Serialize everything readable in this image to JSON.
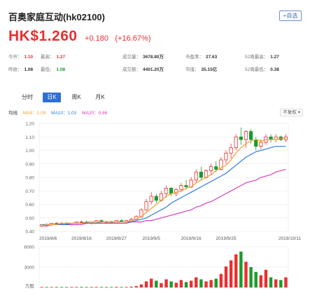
{
  "header": {
    "name": "百奥家庭互动(hk02100)",
    "watch_label": "+自选"
  },
  "quote": {
    "price": "HK$1.260",
    "change": "+0.180",
    "change_pct": "(+16.67%)"
  },
  "stats": [
    {
      "label": "今开：",
      "value": "1.10",
      "color": "red"
    },
    {
      "label": "最高：",
      "value": "1.27",
      "color": "red"
    },
    {
      "label": "成交量：",
      "value": "3678.80万",
      "color": "dark"
    },
    {
      "label": "市盈率：",
      "value": "27.63",
      "color": "dark"
    },
    {
      "label": "52周最高：",
      "value": "1.27",
      "color": "dark"
    },
    {
      "label": "昨收：",
      "value": "1.08",
      "color": "dark"
    },
    {
      "label": "最低：",
      "value": "1.08",
      "color": "green"
    },
    {
      "label": "成交额：",
      "value": "4401.20万",
      "color": "dark"
    },
    {
      "label": "市值：",
      "value": "35.15亿",
      "color": "dark"
    },
    {
      "label": "52周最低：",
      "value": "0.38",
      "color": "dark"
    }
  ],
  "tabs": [
    {
      "label": "分时",
      "active": false
    },
    {
      "label": "日K",
      "active": true
    },
    {
      "label": "周K",
      "active": false
    },
    {
      "label": "月K",
      "active": false
    }
  ],
  "legend": {
    "title": "均线",
    "ma5": "MA5：1.09",
    "ma10": "MA10：1.03",
    "ma20": "MA20：0.86",
    "adjust": "不复权 ▾"
  },
  "colors": {
    "up": "#e93030",
    "down": "#1a9b2e",
    "ma5": "#f0a030",
    "ma10": "#2f7de0",
    "ma20": "#d63fbd",
    "grid": "#e6e6e6"
  },
  "chart_data": [
    {
      "type": "candlestick",
      "ylim": [
        0.4,
        1.2
      ],
      "yticks": [
        0.4,
        0.5,
        0.6,
        0.7,
        0.8,
        0.9,
        1.0,
        1.1,
        1.2
      ],
      "ytick_labels": [
        "0.40",
        "0.50",
        "0.60",
        "0.70",
        "0.80",
        "0.90",
        "1.00",
        "1.10",
        "1.20"
      ],
      "xtick_labels": [
        "2019/8/6",
        "2019/8/16",
        "2019/8/27",
        "2019/9/5",
        "2019/9/16",
        "2019/9/25",
        "2019/10/11"
      ],
      "xtick_index": [
        0,
        8,
        15,
        22,
        30,
        37,
        49
      ],
      "ohlc": [
        [
          0.44,
          0.45,
          0.43,
          0.45
        ],
        [
          0.45,
          0.46,
          0.44,
          0.45
        ],
        [
          0.45,
          0.46,
          0.44,
          0.46
        ],
        [
          0.46,
          0.47,
          0.45,
          0.46
        ],
        [
          0.46,
          0.47,
          0.45,
          0.46
        ],
        [
          0.46,
          0.47,
          0.45,
          0.45
        ],
        [
          0.45,
          0.46,
          0.44,
          0.46
        ],
        [
          0.46,
          0.47,
          0.45,
          0.47
        ],
        [
          0.47,
          0.48,
          0.46,
          0.47
        ],
        [
          0.47,
          0.48,
          0.46,
          0.46
        ],
        [
          0.46,
          0.47,
          0.45,
          0.47
        ],
        [
          0.47,
          0.48,
          0.46,
          0.48
        ],
        [
          0.48,
          0.49,
          0.47,
          0.47
        ],
        [
          0.47,
          0.48,
          0.46,
          0.47
        ],
        [
          0.47,
          0.48,
          0.46,
          0.46
        ],
        [
          0.46,
          0.48,
          0.46,
          0.48
        ],
        [
          0.48,
          0.49,
          0.47,
          0.47
        ],
        [
          0.47,
          0.48,
          0.46,
          0.48
        ],
        [
          0.48,
          0.5,
          0.47,
          0.49
        ],
        [
          0.49,
          0.52,
          0.48,
          0.51
        ],
        [
          0.51,
          0.57,
          0.5,
          0.56
        ],
        [
          0.56,
          0.64,
          0.55,
          0.62
        ],
        [
          0.62,
          0.69,
          0.6,
          0.66
        ],
        [
          0.66,
          0.68,
          0.61,
          0.63
        ],
        [
          0.63,
          0.7,
          0.62,
          0.68
        ],
        [
          0.68,
          0.74,
          0.65,
          0.72
        ],
        [
          0.72,
          0.73,
          0.66,
          0.68
        ],
        [
          0.68,
          0.72,
          0.66,
          0.71
        ],
        [
          0.71,
          0.76,
          0.69,
          0.74
        ],
        [
          0.74,
          0.78,
          0.71,
          0.73
        ],
        [
          0.73,
          0.8,
          0.72,
          0.78
        ],
        [
          0.78,
          0.86,
          0.76,
          0.84
        ],
        [
          0.84,
          0.88,
          0.78,
          0.8
        ],
        [
          0.8,
          0.86,
          0.79,
          0.85
        ],
        [
          0.85,
          0.9,
          0.82,
          0.88
        ],
        [
          0.88,
          0.92,
          0.84,
          0.86
        ],
        [
          0.86,
          0.95,
          0.85,
          0.93
        ],
        [
          0.93,
          1.0,
          0.9,
          0.98
        ],
        [
          0.98,
          1.05,
          0.94,
          1.02
        ],
        [
          1.02,
          1.12,
          1.0,
          1.1
        ],
        [
          1.1,
          1.17,
          1.04,
          1.08
        ],
        [
          1.08,
          1.15,
          1.02,
          1.14
        ],
        [
          1.14,
          1.16,
          1.05,
          1.08
        ],
        [
          1.08,
          1.1,
          1.0,
          1.03
        ],
        [
          1.03,
          1.08,
          1.01,
          1.06
        ],
        [
          1.06,
          1.12,
          1.04,
          1.1
        ],
        [
          1.1,
          1.12,
          1.06,
          1.08
        ],
        [
          1.08,
          1.12,
          1.06,
          1.1
        ],
        [
          1.1,
          1.11,
          1.07,
          1.08
        ],
        [
          1.08,
          1.12,
          1.06,
          1.1
        ]
      ],
      "ma5": [
        0.44,
        0.45,
        0.45,
        0.45,
        0.46,
        0.46,
        0.46,
        0.46,
        0.46,
        0.47,
        0.47,
        0.47,
        0.47,
        0.47,
        0.47,
        0.47,
        0.47,
        0.47,
        0.48,
        0.49,
        0.51,
        0.54,
        0.57,
        0.6,
        0.63,
        0.66,
        0.68,
        0.69,
        0.7,
        0.72,
        0.73,
        0.76,
        0.78,
        0.8,
        0.82,
        0.85,
        0.87,
        0.89,
        0.93,
        0.98,
        1.02,
        1.05,
        1.07,
        1.08,
        1.07,
        1.08,
        1.08,
        1.08,
        1.09,
        1.09
      ],
      "ma10": [
        0.45,
        0.45,
        0.45,
        0.45,
        0.45,
        0.45,
        0.46,
        0.46,
        0.46,
        0.46,
        0.46,
        0.46,
        0.47,
        0.47,
        0.47,
        0.47,
        0.47,
        0.47,
        0.47,
        0.48,
        0.49,
        0.5,
        0.52,
        0.54,
        0.56,
        0.58,
        0.61,
        0.63,
        0.65,
        0.67,
        0.69,
        0.71,
        0.73,
        0.75,
        0.77,
        0.79,
        0.81,
        0.83,
        0.86,
        0.89,
        0.92,
        0.95,
        0.97,
        0.99,
        1.0,
        1.01,
        1.02,
        1.03,
        1.03,
        1.03
      ],
      "ma20": [
        0.44,
        0.44,
        0.45,
        0.45,
        0.45,
        0.45,
        0.45,
        0.45,
        0.45,
        0.46,
        0.46,
        0.46,
        0.46,
        0.46,
        0.46,
        0.46,
        0.46,
        0.46,
        0.47,
        0.47,
        0.47,
        0.48,
        0.48,
        0.49,
        0.5,
        0.51,
        0.52,
        0.53,
        0.54,
        0.55,
        0.56,
        0.58,
        0.59,
        0.61,
        0.62,
        0.64,
        0.66,
        0.68,
        0.7,
        0.72,
        0.74,
        0.76,
        0.77,
        0.78,
        0.8,
        0.81,
        0.82,
        0.84,
        0.85,
        0.86
      ]
    },
    {
      "type": "bar",
      "title": "volume",
      "ylim": [
        0,
        6000
      ],
      "ytick_labels": [
        "6000",
        "3000",
        "万股"
      ],
      "values": [
        60,
        70,
        65,
        80,
        75,
        60,
        70,
        80,
        90,
        70,
        75,
        85,
        70,
        65,
        60,
        90,
        75,
        80,
        120,
        200,
        450,
        900,
        1300,
        1000,
        650,
        1200,
        900,
        700,
        1100,
        800,
        1000,
        1500,
        1200,
        900,
        1100,
        1300,
        2000,
        3100,
        4000,
        4900,
        5300,
        3800,
        3000,
        2300,
        1800,
        2600,
        1500,
        1200,
        1100,
        1500
      ],
      "up": [
        true,
        false,
        true,
        false,
        false,
        false,
        true,
        true,
        false,
        false,
        true,
        true,
        false,
        false,
        false,
        true,
        false,
        true,
        true,
        true,
        true,
        true,
        true,
        false,
        true,
        true,
        false,
        true,
        true,
        false,
        true,
        true,
        false,
        true,
        true,
        false,
        true,
        true,
        true,
        true,
        false,
        true,
        false,
        false,
        true,
        true,
        false,
        true,
        false,
        true
      ]
    }
  ]
}
